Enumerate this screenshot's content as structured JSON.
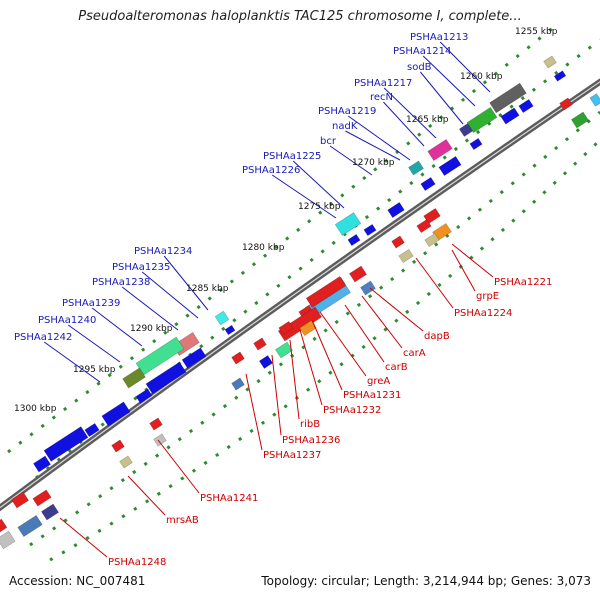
{
  "title": "Pseudoalteromonas haloplanktis TAC125 chromosome I, complete...",
  "footer": {
    "accession": "Accession: NC_007481",
    "summary": "Topology: circular; Length: 3,214,944 bp; Genes: 3,073"
  },
  "colors": {
    "forward_label": "#1a1ab8",
    "reverse_label": "#cc0000",
    "backbone": "#8a8a8a",
    "tick": "#2e8b2e"
  },
  "kbp_labels": [
    "1255 kbp",
    "1260 kbp",
    "1265 kbp",
    "1270 kbp",
    "1275 kbp",
    "1280 kbp",
    "1285 kbp",
    "1290 kbp",
    "1295 kbp",
    "1300 kbp"
  ],
  "forward_genes": [
    "PSHAa1213",
    "PSHAa1214",
    "sodB",
    "PSHAa1217",
    "recN",
    "PSHAa1219",
    "nadK",
    "bcr",
    "PSHAa1225",
    "PSHAa1226",
    "PSHAa1234",
    "PSHAa1235",
    "PSHAa1238",
    "PSHAa1239",
    "PSHAa1240",
    "PSHAa1242"
  ],
  "reverse_genes": [
    "PSHAa1221",
    "grpE",
    "PSHAa1224",
    "dapB",
    "carA",
    "carB",
    "greA",
    "PSHAa1231",
    "PSHAa1232",
    "ribB",
    "PSHAa1236",
    "PSHAa1237",
    "PSHAa1241",
    "mrsAB",
    "PSHAa1248"
  ]
}
